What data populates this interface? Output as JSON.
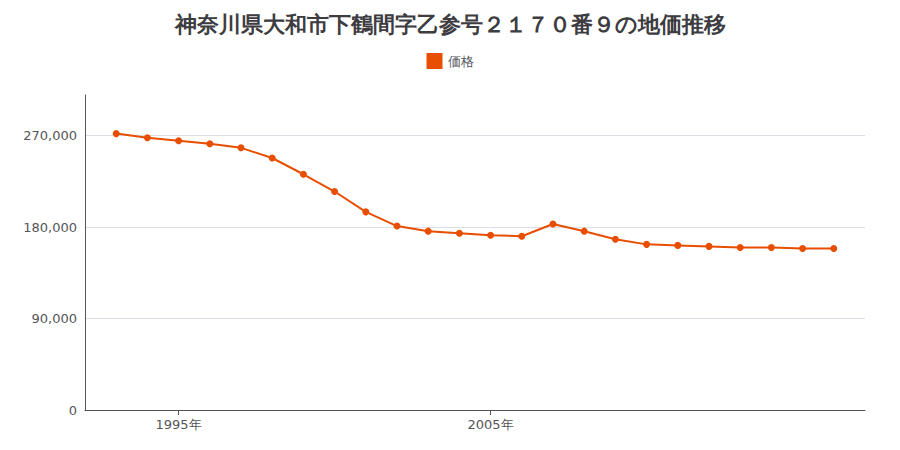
{
  "chart_data": {
    "type": "line",
    "title": "神奈川県大和市下鶴間字乙参号２１７０番９の地価推移",
    "x": [
      1993,
      1994,
      1995,
      1996,
      1997,
      1998,
      1999,
      2000,
      2001,
      2002,
      2003,
      2004,
      2005,
      2006,
      2007,
      2008,
      2009,
      2010,
      2011,
      2012,
      2013,
      2014,
      2015,
      2016
    ],
    "series": [
      {
        "name": "価格",
        "color": "#e84e00",
        "marker": "circle",
        "values": [
          272000,
          268000,
          265000,
          262000,
          258000,
          248000,
          232000,
          215000,
          195000,
          181000,
          176000,
          174000,
          172000,
          171000,
          183000,
          176000,
          168000,
          163000,
          162000,
          161000,
          160000,
          160000,
          159000,
          159000
        ]
      }
    ],
    "xlim": [
      1992,
      2017
    ],
    "xticks": [
      {
        "value": 1995,
        "label": "1995年"
      },
      {
        "value": 2005,
        "label": "2005年"
      }
    ],
    "ylim": [
      0,
      310000
    ],
    "yticks": [
      0,
      {
        "value": 90000,
        "label": "90,000"
      },
      {
        "value": 180000,
        "label": "180,000"
      },
      {
        "value": 270000,
        "label": "270,000"
      }
    ],
    "grid": true,
    "legend": "top"
  }
}
